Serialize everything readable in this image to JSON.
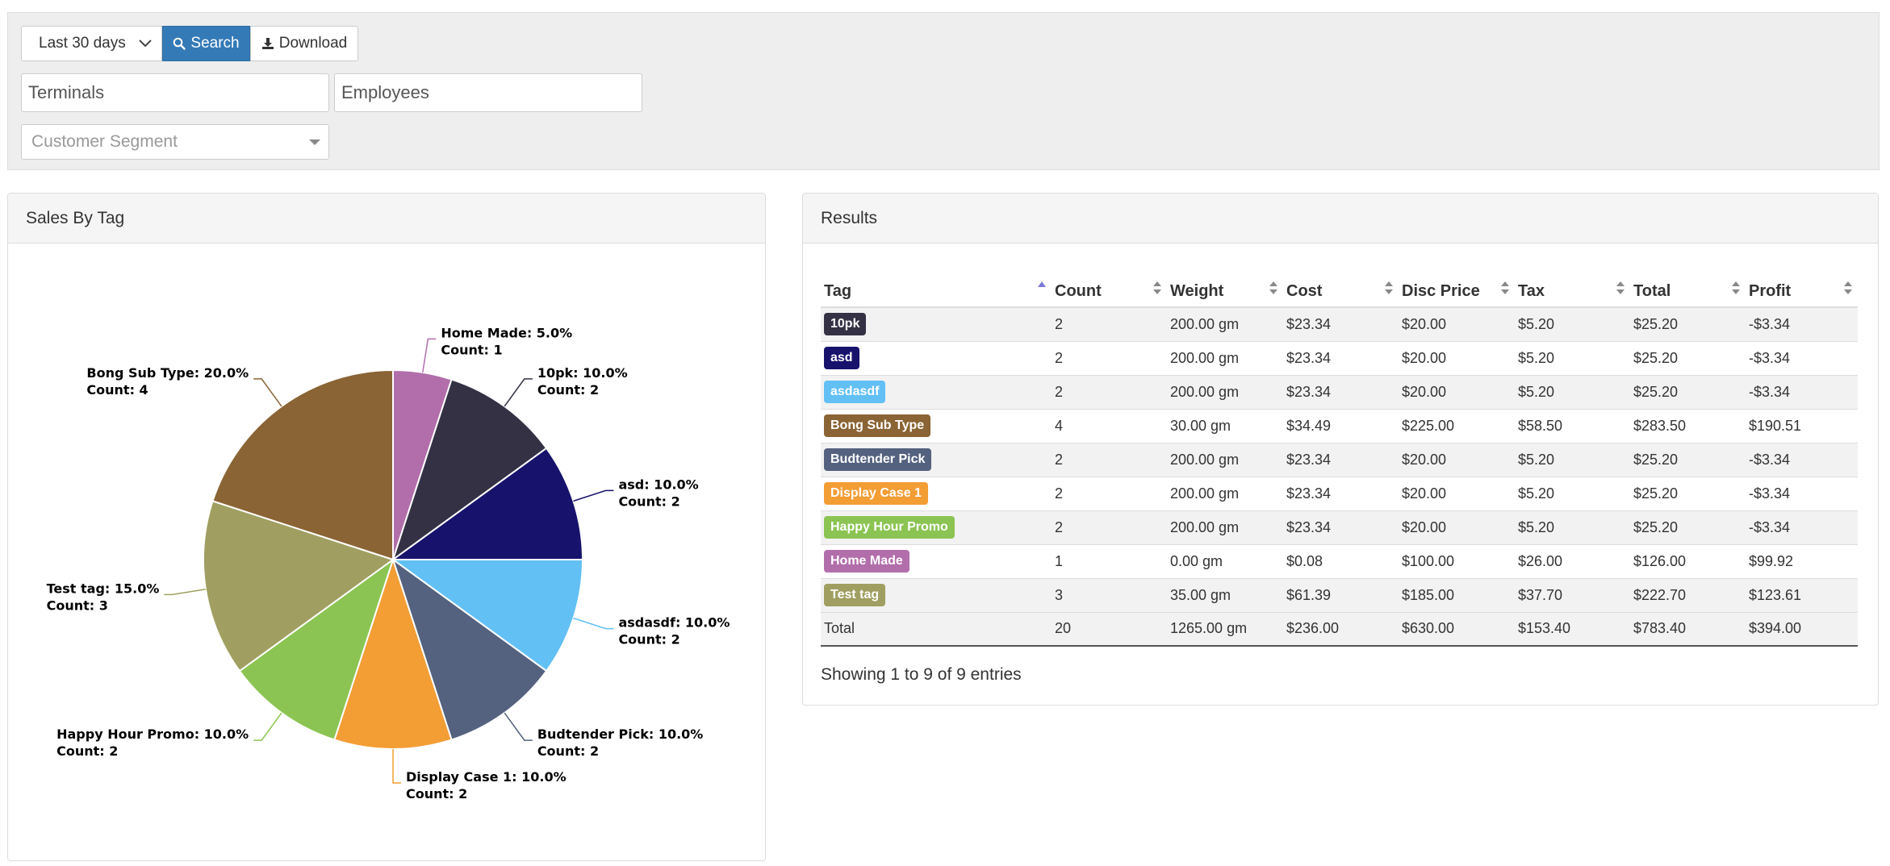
{
  "filters": {
    "date_range": "Last 30 days",
    "search_label": "Search",
    "download_label": "Download",
    "terminals_placeholder": "Terminals",
    "employees_placeholder": "Employees",
    "segment_placeholder": "Customer Segment"
  },
  "chart_panel": {
    "title": "Sales By Tag"
  },
  "chart_data": {
    "type": "pie",
    "slices": [
      {
        "name": "Home Made",
        "pct": 5.0,
        "count": 1,
        "color": "#b26eab",
        "label": "Home Made: 5.0%",
        "count_label": "Count: 1"
      },
      {
        "name": "10pk",
        "pct": 10.0,
        "count": 2,
        "color": "#343145",
        "label": "10pk: 10.0%",
        "count_label": "Count: 2"
      },
      {
        "name": "asd",
        "pct": 10.0,
        "count": 2,
        "color": "#17126b",
        "label": "asd: 10.0%",
        "count_label": "Count: 2"
      },
      {
        "name": "asdasdf",
        "pct": 10.0,
        "count": 2,
        "color": "#62c0f5",
        "label": "asdasdf: 10.0%",
        "count_label": "Count: 2"
      },
      {
        "name": "Budtender Pick",
        "pct": 10.0,
        "count": 2,
        "color": "#54627f",
        "label": "Budtender Pick: 10.0%",
        "count_label": "Count: 2"
      },
      {
        "name": "Display Case 1",
        "pct": 10.0,
        "count": 2,
        "color": "#f39d35",
        "label": "Display Case 1: 10.0%",
        "count_label": "Count: 2"
      },
      {
        "name": "Happy Hour Promo",
        "pct": 10.0,
        "count": 2,
        "color": "#8bc452",
        "label": "Happy Hour Promo: 10.0%",
        "count_label": "Count: 2"
      },
      {
        "name": "Test tag",
        "pct": 15.0,
        "count": 3,
        "color": "#a09f61",
        "label": "Test tag: 15.0%",
        "count_label": "Count: 3"
      },
      {
        "name": "Bong Sub Type",
        "pct": 20.0,
        "count": 4,
        "color": "#8a6434",
        "label": "Bong Sub Type: 20.0%",
        "count_label": "Count: 4"
      }
    ]
  },
  "results_panel": {
    "title": "Results",
    "columns": [
      "Tag",
      "Count",
      "Weight",
      "Cost",
      "Disc Price",
      "Tax",
      "Total",
      "Profit"
    ],
    "rows": [
      {
        "tag": "10pk",
        "color": "#343145",
        "count": "2",
        "weight": "200.00 gm",
        "cost": "$23.34",
        "disc": "$20.00",
        "tax": "$5.20",
        "total": "$25.20",
        "profit": "-$3.34"
      },
      {
        "tag": "asd",
        "color": "#17126b",
        "count": "2",
        "weight": "200.00 gm",
        "cost": "$23.34",
        "disc": "$20.00",
        "tax": "$5.20",
        "total": "$25.20",
        "profit": "-$3.34"
      },
      {
        "tag": "asdasdf",
        "color": "#62c0f5",
        "count": "2",
        "weight": "200.00 gm",
        "cost": "$23.34",
        "disc": "$20.00",
        "tax": "$5.20",
        "total": "$25.20",
        "profit": "-$3.34"
      },
      {
        "tag": "Bong Sub Type",
        "color": "#8a6434",
        "count": "4",
        "weight": "30.00 gm",
        "cost": "$34.49",
        "disc": "$225.00",
        "tax": "$58.50",
        "total": "$283.50",
        "profit": "$190.51"
      },
      {
        "tag": "Budtender Pick",
        "color": "#54627f",
        "count": "2",
        "weight": "200.00 gm",
        "cost": "$23.34",
        "disc": "$20.00",
        "tax": "$5.20",
        "total": "$25.20",
        "profit": "-$3.34"
      },
      {
        "tag": "Display Case 1",
        "color": "#f39d35",
        "count": "2",
        "weight": "200.00 gm",
        "cost": "$23.34",
        "disc": "$20.00",
        "tax": "$5.20",
        "total": "$25.20",
        "profit": "-$3.34"
      },
      {
        "tag": "Happy Hour Promo",
        "color": "#8bc452",
        "count": "2",
        "weight": "200.00 gm",
        "cost": "$23.34",
        "disc": "$20.00",
        "tax": "$5.20",
        "total": "$25.20",
        "profit": "-$3.34"
      },
      {
        "tag": "Home Made",
        "color": "#b26eab",
        "count": "1",
        "weight": "0.00 gm",
        "cost": "$0.08",
        "disc": "$100.00",
        "tax": "$26.00",
        "total": "$126.00",
        "profit": "$99.92"
      },
      {
        "tag": "Test tag",
        "color": "#a09f61",
        "count": "3",
        "weight": "35.00 gm",
        "cost": "$61.39",
        "disc": "$185.00",
        "tax": "$37.70",
        "total": "$222.70",
        "profit": "$123.61"
      }
    ],
    "totals": {
      "label": "Total",
      "count": "20",
      "weight": "1265.00 gm",
      "cost": "$236.00",
      "disc": "$630.00",
      "tax": "$153.40",
      "total": "$783.40",
      "profit": "$394.00"
    },
    "showing": "Showing 1 to 9 of 9 entries"
  }
}
